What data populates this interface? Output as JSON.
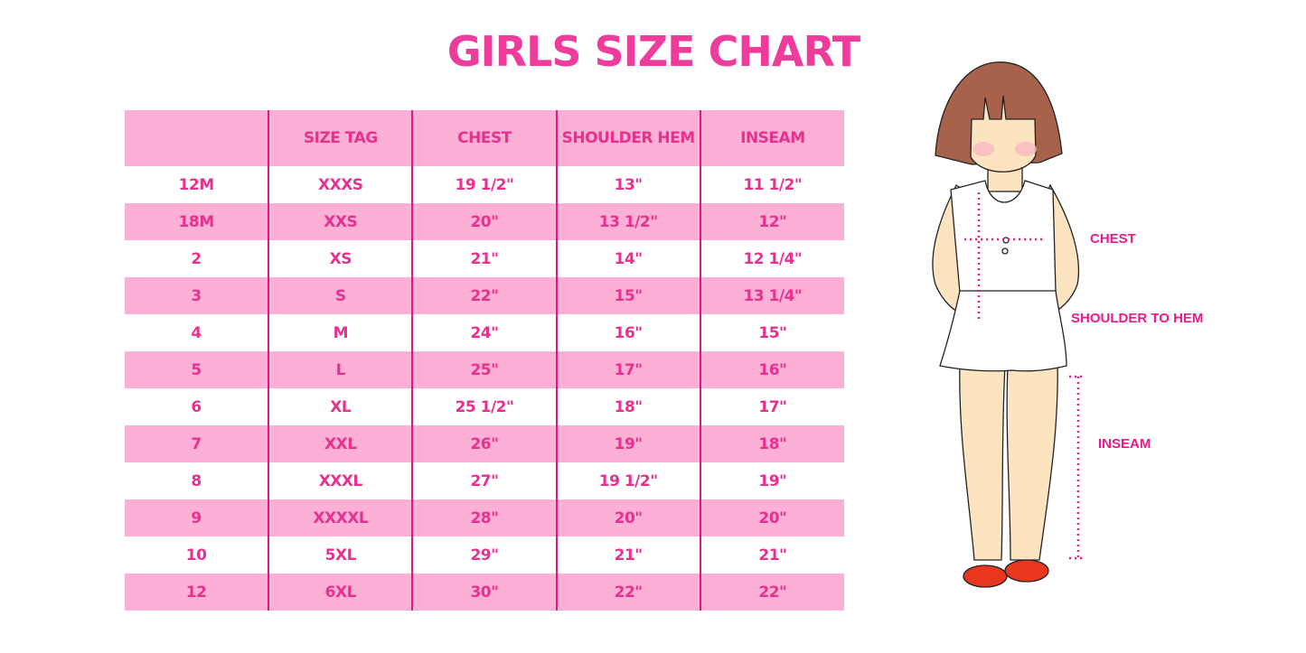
{
  "title": "GIRLS SIZE CHART",
  "table": {
    "headers": [
      "",
      "SIZE TAG",
      "CHEST",
      "SHOULDER HEM",
      "INSEAM"
    ],
    "rows": [
      [
        "12M",
        "XXXS",
        "19 1/2\"",
        "13\"",
        "11 1/2\""
      ],
      [
        "18M",
        "XXS",
        "20\"",
        "13 1/2\"",
        "12\""
      ],
      [
        "2",
        "XS",
        "21\"",
        "14\"",
        "12 1/4\""
      ],
      [
        "3",
        "S",
        "22\"",
        "15\"",
        "13 1/4\""
      ],
      [
        "4",
        "M",
        "24\"",
        "16\"",
        "15\""
      ],
      [
        "5",
        "L",
        "25\"",
        "17\"",
        "16\""
      ],
      [
        "6",
        "XL",
        "25 1/2\"",
        "18\"",
        "17\""
      ],
      [
        "7",
        "XXL",
        "26\"",
        "19\"",
        "18\""
      ],
      [
        "8",
        "XXXL",
        "27\"",
        "19 1/2\"",
        "19\""
      ],
      [
        "9",
        "XXXXL",
        "28\"",
        "20\"",
        "20\""
      ],
      [
        "10",
        "5XL",
        "29\"",
        "21\"",
        "21\""
      ],
      [
        "12",
        "6XL",
        "30\"",
        "22\"",
        "22\""
      ]
    ]
  },
  "figure": {
    "labels": {
      "chest": "CHEST",
      "shoulder": "SHOULDER TO HEM",
      "inseam": "INSEAM"
    }
  },
  "colors": {
    "accent": "#e8308f",
    "row_pink": "#fdb0d6",
    "divider": "#e2167f"
  }
}
